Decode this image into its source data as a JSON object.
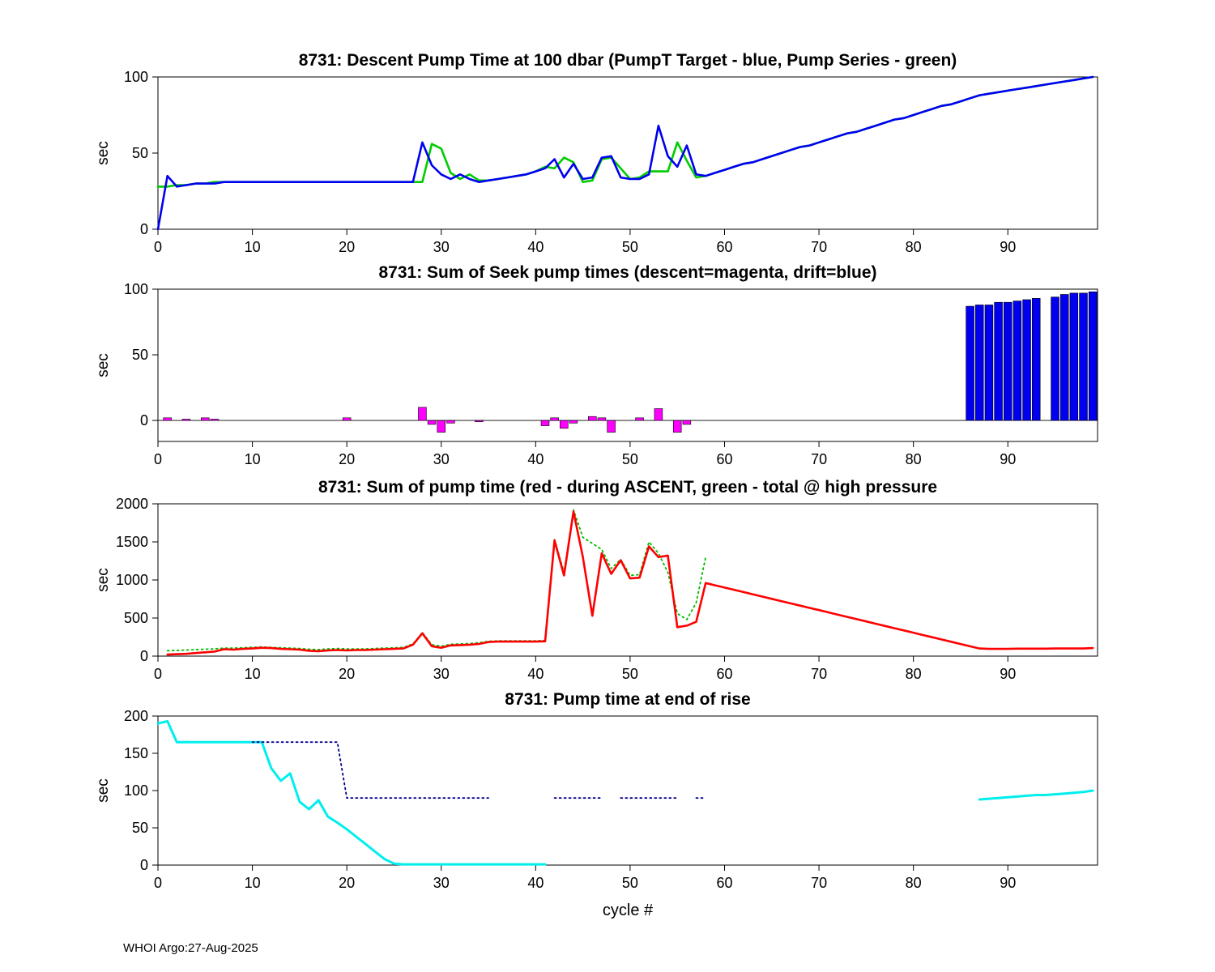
{
  "footer": {
    "text": "WHOI Argo:27-Aug-2025"
  },
  "colors": {
    "target_blue": "#0000f0",
    "series_green": "#00cc00",
    "descent_magenta": "#ff00ff",
    "drift_blue": "#0000ee",
    "ascent_red": "#ff0000",
    "total_green_dotted": "#00bb00",
    "rise_cyan": "#00eeee",
    "rise_navy_dotted": "#00008b"
  },
  "chart_data": [
    {
      "type": "line",
      "title": "8731: Descent Pump Time at 100 dbar (PumpT Target - blue, Pump Series - green)",
      "ylabel": "sec",
      "xlim": [
        0,
        99.5
      ],
      "ylim": [
        0,
        100
      ],
      "xticks": [
        0,
        10,
        20,
        30,
        40,
        50,
        60,
        70,
        80,
        90
      ],
      "yticks": [
        0,
        50,
        100
      ],
      "box": {
        "top": 95,
        "bottom": 283
      },
      "series": [
        {
          "name": "pump-series-green",
          "color": "#00cc00",
          "style": "solid",
          "width": 2.6,
          "x0": 0,
          "y": [
            28,
            28,
            29,
            29,
            30,
            30,
            31,
            31,
            31,
            31,
            31,
            31,
            31,
            31,
            31,
            31,
            31,
            31,
            31,
            31,
            31,
            31,
            31,
            31,
            31,
            31,
            31,
            31,
            31,
            56,
            53,
            37,
            33,
            36,
            32,
            32,
            33,
            34,
            35,
            36,
            38,
            41,
            40,
            47,
            44,
            31,
            32,
            46,
            47,
            40,
            33,
            34,
            38,
            38,
            38,
            57,
            45,
            34,
            35,
            37,
            39,
            41,
            43,
            44,
            46,
            48,
            50,
            52,
            54,
            55,
            57,
            59,
            61,
            63,
            64,
            66,
            68,
            70,
            72,
            73,
            75,
            77,
            79,
            81,
            82,
            84,
            86,
            88,
            89,
            90,
            91,
            92,
            93,
            94,
            95,
            96,
            97,
            98,
            99,
            100
          ]
        },
        {
          "name": "pumpt-target-blue",
          "color": "#0000f0",
          "style": "solid",
          "width": 2.6,
          "x0": 0,
          "y": [
            0,
            35,
            28,
            29,
            30,
            30,
            30,
            31,
            31,
            31,
            31,
            31,
            31,
            31,
            31,
            31,
            31,
            31,
            31,
            31,
            31,
            31,
            31,
            31,
            31,
            31,
            31,
            31,
            57,
            42,
            36,
            33,
            36,
            33,
            31,
            32,
            33,
            34,
            35,
            36,
            38,
            40,
            46,
            34,
            43,
            33,
            34,
            47,
            48,
            34,
            33,
            33,
            36,
            68,
            48,
            41,
            55,
            36,
            35,
            37,
            39,
            41,
            43,
            44,
            46,
            48,
            50,
            52,
            54,
            55,
            57,
            59,
            61,
            63,
            64,
            66,
            68,
            70,
            72,
            73,
            75,
            77,
            79,
            81,
            82,
            84,
            86,
            88,
            89,
            90,
            91,
            92,
            93,
            94,
            95,
            96,
            97,
            98,
            99,
            100
          ]
        }
      ]
    },
    {
      "type": "bar",
      "title": "8731: Sum of Seek pump times (descent=magenta, drift=blue)",
      "ylabel": "sec",
      "xlim": [
        0,
        99.5
      ],
      "ylim": [
        -16,
        100
      ],
      "xticks": [
        0,
        10,
        20,
        30,
        40,
        50,
        60,
        70,
        80,
        90
      ],
      "yticks": [
        0,
        50,
        100
      ],
      "box": {
        "top": 357,
        "bottom": 545
      },
      "series": [
        {
          "name": "drift-blue-bars",
          "type": "bar",
          "color": "#0000ee",
          "bar_width": 0.85,
          "points": [
            [
              86,
              87
            ],
            [
              87,
              88
            ],
            [
              88,
              88
            ],
            [
              89,
              90
            ],
            [
              90,
              90
            ],
            [
              91,
              91
            ],
            [
              92,
              92
            ],
            [
              93,
              93
            ],
            [
              95,
              94
            ],
            [
              96,
              96
            ],
            [
              97,
              97
            ],
            [
              98,
              97
            ],
            [
              99,
              98
            ]
          ]
        },
        {
          "name": "descent-magenta-bars",
          "type": "bar",
          "color": "#ff00ff",
          "bar_width": 0.85,
          "points": [
            [
              1,
              2
            ],
            [
              3,
              1
            ],
            [
              5,
              2
            ],
            [
              6,
              1
            ],
            [
              20,
              2
            ],
            [
              28,
              10
            ],
            [
              29,
              -3
            ],
            [
              30,
              -9
            ],
            [
              31,
              -2
            ],
            [
              34,
              -1
            ],
            [
              41,
              -4
            ],
            [
              42,
              2
            ],
            [
              43,
              -6
            ],
            [
              44,
              -2
            ],
            [
              46,
              3
            ],
            [
              47,
              2
            ],
            [
              48,
              -9
            ],
            [
              51,
              2
            ],
            [
              53,
              9
            ],
            [
              55,
              -9
            ],
            [
              56,
              -3
            ]
          ]
        }
      ]
    },
    {
      "type": "line",
      "title": "8731: Sum of pump time (red - during ASCENT, green - total @ high pressure",
      "ylabel": "sec",
      "xlim": [
        0,
        99.5
      ],
      "ylim": [
        0,
        2000
      ],
      "xticks": [
        0,
        10,
        20,
        30,
        40,
        50,
        60,
        70,
        80,
        90
      ],
      "yticks": [
        0,
        500,
        1000,
        1500,
        2000
      ],
      "box": {
        "top": 622,
        "bottom": 810
      },
      "series": [
        {
          "name": "total-high-pressure-green",
          "color": "#00bb00",
          "style": "dotted",
          "width": 1.8,
          "x0": 1,
          "y": [
            70,
            75,
            80,
            85,
            90,
            95,
            105,
            105,
            110,
            115,
            120,
            115,
            110,
            105,
            100,
            90,
            85,
            95,
            100,
            95,
            95,
            95,
            100,
            105,
            110,
            115,
            160,
            310,
            150,
            130,
            155,
            160,
            165,
            175,
            195,
            200,
            200,
            200,
            200,
            200,
            205,
            1530,
            1100,
            1920,
            1560,
            1480,
            1400,
            1150,
            1270,
            1060,
            1070,
            1500,
            1350,
            1100,
            560,
            480,
            700,
            1300
          ]
        },
        {
          "name": "ascent-red",
          "color": "#ff0000",
          "style": "solid",
          "width": 2.6,
          "x0": 1,
          "y": [
            20,
            25,
            30,
            40,
            50,
            60,
            90,
            85,
            95,
            100,
            110,
            105,
            95,
            90,
            85,
            70,
            65,
            75,
            80,
            75,
            80,
            80,
            85,
            90,
            95,
            100,
            150,
            300,
            130,
            110,
            140,
            145,
            150,
            160,
            185,
            190,
            190,
            190,
            190,
            190,
            195,
            1520,
            1060,
            1900,
            1300,
            530,
            1350,
            1080,
            1260,
            1020,
            1030,
            1440,
            1300,
            1320,
            380,
            400,
            450,
            960,
            930,
            900,
            871,
            841,
            811,
            782,
            752,
            722,
            693,
            663,
            633,
            604,
            574,
            544,
            515,
            485,
            455,
            426,
            396,
            366,
            337,
            307,
            277,
            248,
            218,
            188,
            159,
            129,
            100,
            95,
            95,
            95,
            98,
            98,
            98,
            98,
            100,
            100,
            100,
            100,
            105
          ]
        }
      ]
    },
    {
      "type": "line",
      "title": "8731: Pump time at end of rise",
      "ylabel": "sec",
      "xlabel": "cycle #",
      "xlim": [
        0,
        99.5
      ],
      "ylim": [
        0,
        200
      ],
      "xticks": [
        0,
        10,
        20,
        30,
        40,
        50,
        60,
        70,
        80,
        90
      ],
      "yticks": [
        0,
        50,
        100,
        150,
        200
      ],
      "box": {
        "top": 884,
        "bottom": 1068
      },
      "series": [
        {
          "name": "rise-cyan",
          "color": "#00eeee",
          "style": "solid",
          "width": 3,
          "x0": 0,
          "y": [
            190,
            193,
            165,
            165,
            165,
            165,
            165,
            165,
            165,
            165,
            165,
            165,
            130,
            113,
            123,
            85,
            75,
            87,
            65,
            57,
            48,
            38,
            28,
            18,
            8,
            2,
            1,
            1,
            1,
            1,
            1,
            1,
            1,
            1,
            1,
            1,
            1,
            1,
            1,
            1,
            1,
            1,
            null,
            null,
            null,
            null,
            null,
            null,
            null,
            null,
            null,
            null,
            null,
            null,
            null,
            null,
            null,
            null,
            null,
            null,
            null,
            null,
            null,
            null,
            null,
            null,
            null,
            null,
            null,
            null,
            null,
            null,
            null,
            null,
            null,
            null,
            null,
            null,
            null,
            null,
            null,
            null,
            null,
            null,
            null,
            null,
            null,
            88,
            89,
            90,
            91,
            92,
            93,
            94,
            94,
            95,
            96,
            97,
            98,
            100
          ]
        },
        {
          "name": "rise-target-navy-dotted",
          "color": "#00008b",
          "style": "dotted",
          "width": 1.8,
          "x0": 0,
          "y": [
            null,
            null,
            null,
            null,
            null,
            null,
            null,
            null,
            null,
            null,
            165,
            165,
            165,
            165,
            165,
            165,
            165,
            165,
            165,
            165,
            90,
            90,
            90,
            90,
            90,
            90,
            90,
            90,
            90,
            90,
            90,
            90,
            90,
            90,
            90,
            90,
            null,
            null,
            null,
            null,
            null,
            null,
            90,
            90,
            90,
            90,
            90,
            90,
            null,
            90,
            90,
            90,
            90,
            90,
            90,
            90,
            null,
            90,
            90,
            null,
            null,
            null,
            null,
            null,
            null,
            null,
            null,
            null,
            null,
            null,
            null,
            null,
            null,
            null,
            null,
            null,
            null,
            null,
            null,
            null,
            null,
            null,
            null,
            null,
            null,
            null,
            null,
            null,
            null,
            null,
            null,
            null,
            null,
            null,
            null,
            null,
            null,
            null,
            null,
            null
          ]
        }
      ]
    }
  ]
}
